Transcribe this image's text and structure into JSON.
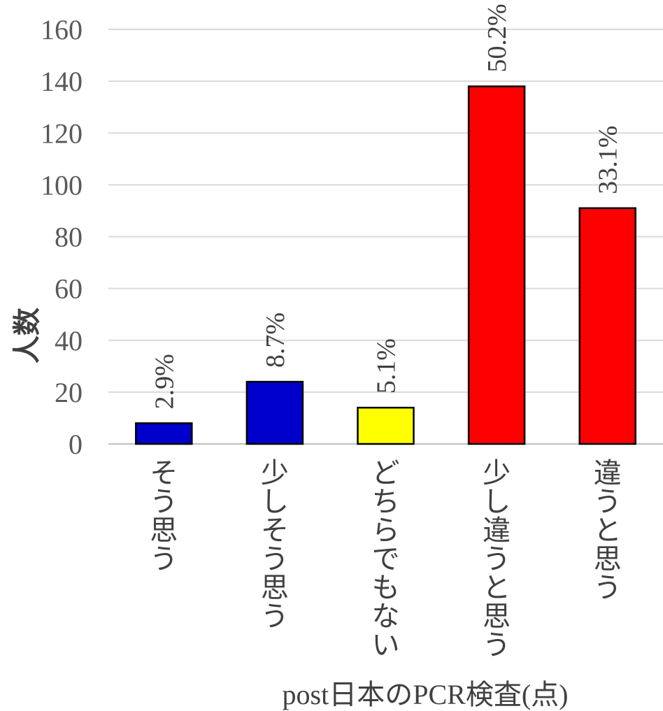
{
  "chart_data": {
    "type": "bar",
    "categories": [
      "そう思う",
      "少しそう思う",
      "どちらでもない",
      "少し違うと思う",
      "違うと思う"
    ],
    "values": [
      8,
      24,
      14,
      138,
      91
    ],
    "data_labels": [
      "2.9%",
      "8.7%",
      "5.1%",
      "50.2%",
      "33.1%"
    ],
    "colors": [
      "#0000cc",
      "#0000cc",
      "#ffff00",
      "#ff0000",
      "#ff0000"
    ],
    "ylabel": "人数",
    "xlabel": "post日本のPCR検査(点)",
    "ylim": [
      0,
      160
    ],
    "yticks": [
      "0",
      "20",
      "40",
      "60",
      "80",
      "100",
      "120",
      "140",
      "160"
    ],
    "grid": true
  }
}
